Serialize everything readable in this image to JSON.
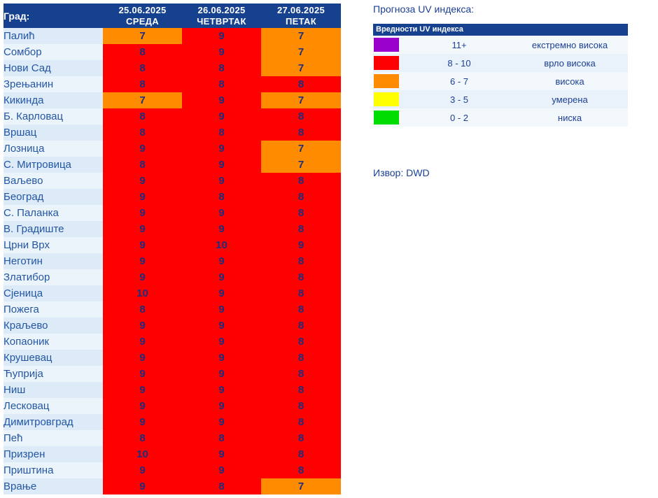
{
  "colors": {
    "header_bg": "#16418f",
    "text_navy": "#1b3f94",
    "city_text": "#2456a4",
    "value_text": "#1b2f7e",
    "row_a": "#dcebf7",
    "row_b": "#ebf4fb",
    "red": "#ff0000",
    "orange": "#ff8c00",
    "yellow": "#ffff00",
    "green": "#00dd00",
    "purple": "#9900cc"
  },
  "table": {
    "city_header": "Град:",
    "columns": [
      {
        "date": "25.06.2025",
        "day": "СРЕДА"
      },
      {
        "date": "26.06.2025",
        "day": "ЧЕТВРТАК"
      },
      {
        "date": "27.06.2025",
        "day": "ПЕТАК"
      }
    ]
  },
  "chart_data": {
    "type": "heatmap",
    "title": "Прогноза UV индекса",
    "categories": [
      "25.06.2025 СРЕДА",
      "26.06.2025 ЧЕТВРТАК",
      "27.06.2025 ПЕТАК"
    ],
    "rows": [
      {
        "city": "Палић",
        "values": [
          7,
          9,
          7
        ]
      },
      {
        "city": "Сомбор",
        "values": [
          8,
          9,
          7
        ]
      },
      {
        "city": "Нови Сад",
        "values": [
          8,
          8,
          7
        ]
      },
      {
        "city": "Зрењанин",
        "values": [
          8,
          8,
          8
        ]
      },
      {
        "city": "Кикинда",
        "values": [
          7,
          9,
          7
        ]
      },
      {
        "city": "Б. Карловац",
        "values": [
          8,
          9,
          8
        ]
      },
      {
        "city": "Вршац",
        "values": [
          8,
          8,
          8
        ]
      },
      {
        "city": "Лозница",
        "values": [
          9,
          9,
          7
        ]
      },
      {
        "city": "С. Митровица",
        "values": [
          8,
          9,
          7
        ]
      },
      {
        "city": "Ваљево",
        "values": [
          9,
          9,
          8
        ]
      },
      {
        "city": "Београд",
        "values": [
          9,
          8,
          8
        ]
      },
      {
        "city": "С. Паланка",
        "values": [
          9,
          9,
          8
        ]
      },
      {
        "city": "В. Градиште",
        "values": [
          9,
          9,
          8
        ]
      },
      {
        "city": "Црни Врх",
        "values": [
          9,
          10,
          9
        ]
      },
      {
        "city": "Неготин",
        "values": [
          9,
          9,
          8
        ]
      },
      {
        "city": "Златибор",
        "values": [
          9,
          9,
          8
        ]
      },
      {
        "city": "Сјеница",
        "values": [
          10,
          9,
          8
        ]
      },
      {
        "city": "Пожега",
        "values": [
          8,
          9,
          8
        ]
      },
      {
        "city": "Краљево",
        "values": [
          9,
          9,
          8
        ]
      },
      {
        "city": "Копаоник",
        "values": [
          9,
          9,
          8
        ]
      },
      {
        "city": "Крушевац",
        "values": [
          9,
          9,
          8
        ]
      },
      {
        "city": "Ћуприја",
        "values": [
          9,
          9,
          8
        ]
      },
      {
        "city": "Ниш",
        "values": [
          9,
          9,
          8
        ]
      },
      {
        "city": "Лесковац",
        "values": [
          9,
          9,
          8
        ]
      },
      {
        "city": "Димитровград",
        "values": [
          9,
          9,
          8
        ]
      },
      {
        "city": "Пећ",
        "values": [
          8,
          8,
          8
        ]
      },
      {
        "city": "Призрен",
        "values": [
          10,
          9,
          8
        ]
      },
      {
        "city": "Приштина",
        "values": [
          9,
          9,
          8
        ]
      },
      {
        "city": "Врање",
        "values": [
          9,
          8,
          7
        ]
      }
    ],
    "value_color_scale": [
      {
        "range": "11+",
        "color": "#9900cc"
      },
      {
        "range": "8 - 10",
        "color": "#ff0000"
      },
      {
        "range": "6 - 7",
        "color": "#ff8c00"
      },
      {
        "range": "3 - 5",
        "color": "#ffff00"
      },
      {
        "range": "0 - 2",
        "color": "#00dd00"
      }
    ]
  },
  "legend": {
    "title": "Прогноза UV индекса:",
    "header": "Вредности UV индекса",
    "items": [
      {
        "range": "11+",
        "label": "екстремно висока",
        "color": "#9900cc"
      },
      {
        "range": "8 - 10",
        "label": "врло висока",
        "color": "#ff0000"
      },
      {
        "range": "6 - 7",
        "label": "висока",
        "color": "#ff8c00"
      },
      {
        "range": "3 - 5",
        "label": "умерена",
        "color": "#ffff00"
      },
      {
        "range": "0 - 2",
        "label": "ниска",
        "color": "#00dd00"
      }
    ],
    "source": "Извор: DWD"
  }
}
